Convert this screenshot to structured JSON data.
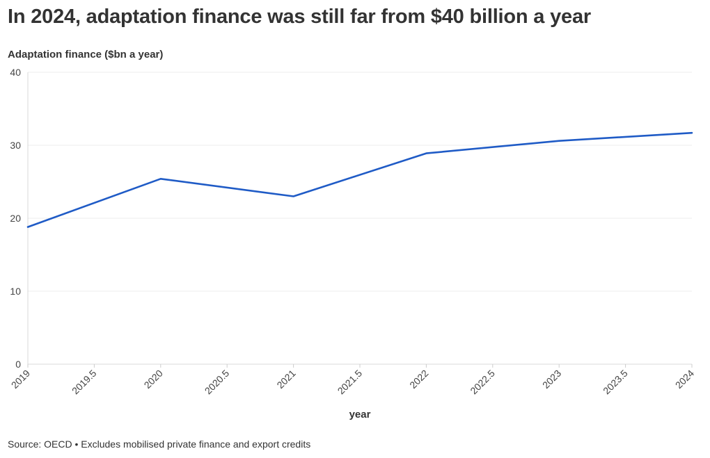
{
  "title": "In 2024, adaptation finance was still far from $40 billion a year",
  "footnote": "Source: OECD • Excludes mobilised private finance and export credits",
  "chart_data": {
    "type": "line",
    "ylabel": "Adaptation finance ($bn a year)",
    "xlabel": "year",
    "x": [
      2019,
      2020,
      2021,
      2022,
      2023,
      2024
    ],
    "series": [
      {
        "values": [
          18.8,
          25.4,
          23.0,
          28.9,
          30.6,
          31.7
        ],
        "color": "#1f5bc6"
      }
    ],
    "xlim": [
      2019,
      2024
    ],
    "ylim": [
      0,
      40
    ],
    "x_ticks": [
      "2019",
      "2019.5",
      "2020",
      "2020.5",
      "2021",
      "2021.5",
      "2022",
      "2022.5",
      "2023",
      "2023.5",
      "2024"
    ],
    "y_ticks": [
      "0",
      "10",
      "20",
      "30",
      "40"
    ],
    "grid": true,
    "legend": "none"
  }
}
